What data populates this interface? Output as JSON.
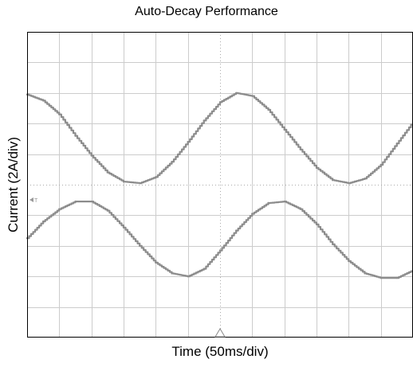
{
  "chart_data": {
    "type": "line",
    "title": "Auto-Decay Performance",
    "xlabel": "Time (50ms/div)",
    "ylabel": "Current  (2A/div)",
    "x_divisions": 12,
    "y_divisions": 10,
    "grid": true,
    "trigger_marker": "T",
    "trace_color": "#8c8c8c",
    "grid_color": "#cccccc",
    "series": [
      {
        "x": [
          0,
          0.5,
          1,
          1.5,
          2,
          2.5,
          3,
          3.5,
          4,
          4.5,
          5,
          5.5,
          6,
          6.5,
          7,
          7.5,
          8,
          8.5,
          9,
          9.5,
          10,
          10.5,
          11,
          11.5,
          12
        ],
        "values": [
          2.95,
          2.75,
          2.3,
          1.6,
          0.95,
          0.4,
          0.1,
          0.05,
          0.25,
          0.75,
          1.4,
          2.1,
          2.7,
          3.0,
          2.9,
          2.45,
          1.8,
          1.15,
          0.55,
          0.15,
          0.05,
          0.2,
          0.65,
          1.35,
          2.05
        ]
      },
      {
        "x": [
          0,
          0.5,
          1,
          1.5,
          2,
          2.5,
          3,
          3.5,
          4,
          4.5,
          5,
          5.5,
          6,
          6.5,
          7,
          7.5,
          8,
          8.5,
          9,
          9.5,
          10,
          10.5,
          11,
          11.5,
          12
        ],
        "values": [
          -1.75,
          -1.2,
          -0.8,
          -0.55,
          -0.55,
          -0.85,
          -1.4,
          -2.0,
          -2.55,
          -2.9,
          -3.0,
          -2.75,
          -2.15,
          -1.5,
          -0.95,
          -0.6,
          -0.55,
          -0.8,
          -1.3,
          -1.95,
          -2.5,
          -2.9,
          -3.05,
          -3.05,
          -2.8
        ]
      }
    ]
  }
}
